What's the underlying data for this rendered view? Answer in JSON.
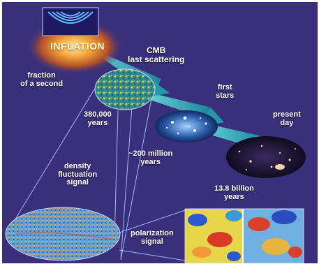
{
  "labels": {
    "inflation": "INFLATION",
    "fraction_line1": "fraction",
    "fraction_line2": "of a second",
    "cmb_line1": "CMB",
    "cmb_line2": "last scattering",
    "years380_line1": "380,000",
    "years380_line2": "years",
    "first_line1": "first",
    "first_line2": "stars",
    "present_line1": "present",
    "present_line2": "day",
    "million_line1": "~200 million",
    "million_line2": "years",
    "billion_line1": "13.8 billion",
    "billion_line2": "years",
    "density_line1": "density",
    "density_line2": "fluctuation",
    "density_line3": "signal",
    "polar_line1": "polarization",
    "polar_line2": "signal"
  },
  "colors": {
    "background": "#3a2f7a",
    "beam": "#38c0c8",
    "guide_lines": "#9fb4ff",
    "label_text": "#ffffff"
  }
}
